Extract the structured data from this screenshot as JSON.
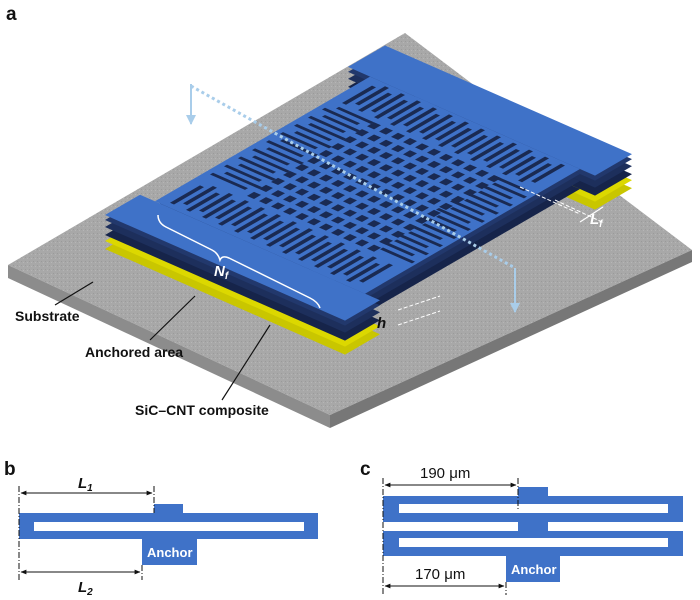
{
  "panels": {
    "a": {
      "label": "a",
      "callouts": {
        "substrate": "Substrate",
        "anchored_area": "Anchored area",
        "composite": "SiC–CNT composite"
      },
      "dims": {
        "nf": "N",
        "nf_sub": "f",
        "lf": "L",
        "lf_sub": "f",
        "h": "h"
      }
    },
    "b": {
      "label": "b",
      "l1": "L",
      "l1_sub": "1",
      "l2": "L",
      "l2_sub": "2",
      "anchor": "Anchor"
    },
    "c": {
      "label": "c",
      "top_dim": "190 μm",
      "bottom_dim": "170 μm",
      "anchor": "Anchor"
    }
  },
  "colors": {
    "structure_blue": "#3f72c8",
    "side_navy": "#1b2c55",
    "anchor_yellow": "#d6d400",
    "substrate_gray": "#a6a6a6"
  }
}
